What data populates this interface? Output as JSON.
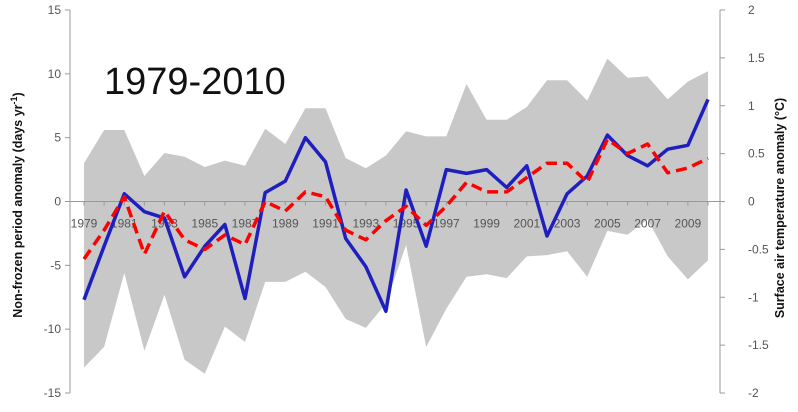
{
  "chart_data": {
    "type": "line",
    "annotation": "1979-2010",
    "ylabel_left": "Non-frozen period anomaly (days yr",
    "ylabel_left_sup": "-1",
    "ylabel_left_end": ")",
    "ylabel_right": "Surface air temperature anomaly (°C)",
    "ylim_left": [
      -15,
      15
    ],
    "ylim_right": [
      -2,
      2
    ],
    "yticks_left": [
      "15",
      "10",
      "5",
      "0",
      "-5",
      "-10",
      "-15"
    ],
    "yticks_right": [
      "2",
      "1.5",
      "1",
      "0.5",
      "0",
      "-0.5",
      "-1",
      "-1.5",
      "-2"
    ],
    "xticks": [
      "1979",
      "1981",
      "1983",
      "1985",
      "1987",
      "1989",
      "1991",
      "1993",
      "1995",
      "1997",
      "1999",
      "2001",
      "2003",
      "2005",
      "2007",
      "2009"
    ],
    "x": [
      1979,
      1980,
      1981,
      1982,
      1983,
      1984,
      1985,
      1986,
      1987,
      1988,
      1989,
      1990,
      1991,
      1992,
      1993,
      1994,
      1995,
      1996,
      1997,
      1998,
      1999,
      2000,
      2001,
      2002,
      2003,
      2004,
      2005,
      2006,
      2007,
      2008,
      2009,
      2010
    ],
    "series": [
      {
        "axis": "left",
        "color": "#1f1fbf",
        "style": "solid",
        "values": [
          -7.7,
          -3.5,
          0.6,
          -0.8,
          -1.3,
          -5.9,
          -3.5,
          -1.8,
          -7.6,
          0.7,
          1.6,
          5.0,
          3.1,
          -2.9,
          -5.1,
          -8.6,
          0.9,
          -3.5,
          2.5,
          2.2,
          2.5,
          1.1,
          2.8,
          -2.7,
          0.6,
          2.0,
          5.2,
          3.6,
          2.8,
          4.1,
          4.4,
          8.0
        ]
      },
      {
        "axis": "right",
        "color": "#ff0000",
        "style": "dashed",
        "values": [
          -0.6,
          -0.3,
          0.05,
          -0.55,
          -0.1,
          -0.4,
          -0.5,
          -0.35,
          -0.45,
          0.0,
          -0.1,
          0.1,
          0.05,
          -0.3,
          -0.4,
          -0.2,
          -0.05,
          -0.25,
          -0.05,
          0.2,
          0.1,
          0.1,
          0.25,
          0.4,
          0.4,
          0.2,
          0.65,
          0.5,
          0.6,
          0.3,
          0.35,
          0.45
        ]
      }
    ],
    "band": {
      "axis": "left",
      "color": "#c8c8c8",
      "upper": [
        3.0,
        5.6,
        5.6,
        2.0,
        3.8,
        3.5,
        2.7,
        3.2,
        2.8,
        5.7,
        4.5,
        7.3,
        7.3,
        3.4,
        2.6,
        3.6,
        5.5,
        5.1,
        5.1,
        9.2,
        6.4,
        6.4,
        7.4,
        9.5,
        9.5,
        7.9,
        11.2,
        9.7,
        9.8,
        8.0,
        9.4,
        10.2
      ],
      "lower": [
        -13.0,
        -11.4,
        -5.6,
        -11.7,
        -7.3,
        -12.4,
        -13.5,
        -9.8,
        -11.0,
        -6.3,
        -6.3,
        -5.5,
        -6.7,
        -9.2,
        -9.9,
        -8.0,
        -3.4,
        -11.4,
        -8.4,
        -5.9,
        -5.7,
        -6.0,
        -4.3,
        -4.2,
        -3.9,
        -5.9,
        -2.3,
        -2.6,
        -1.4,
        -4.3,
        -6.1,
        -4.6
      ]
    }
  }
}
